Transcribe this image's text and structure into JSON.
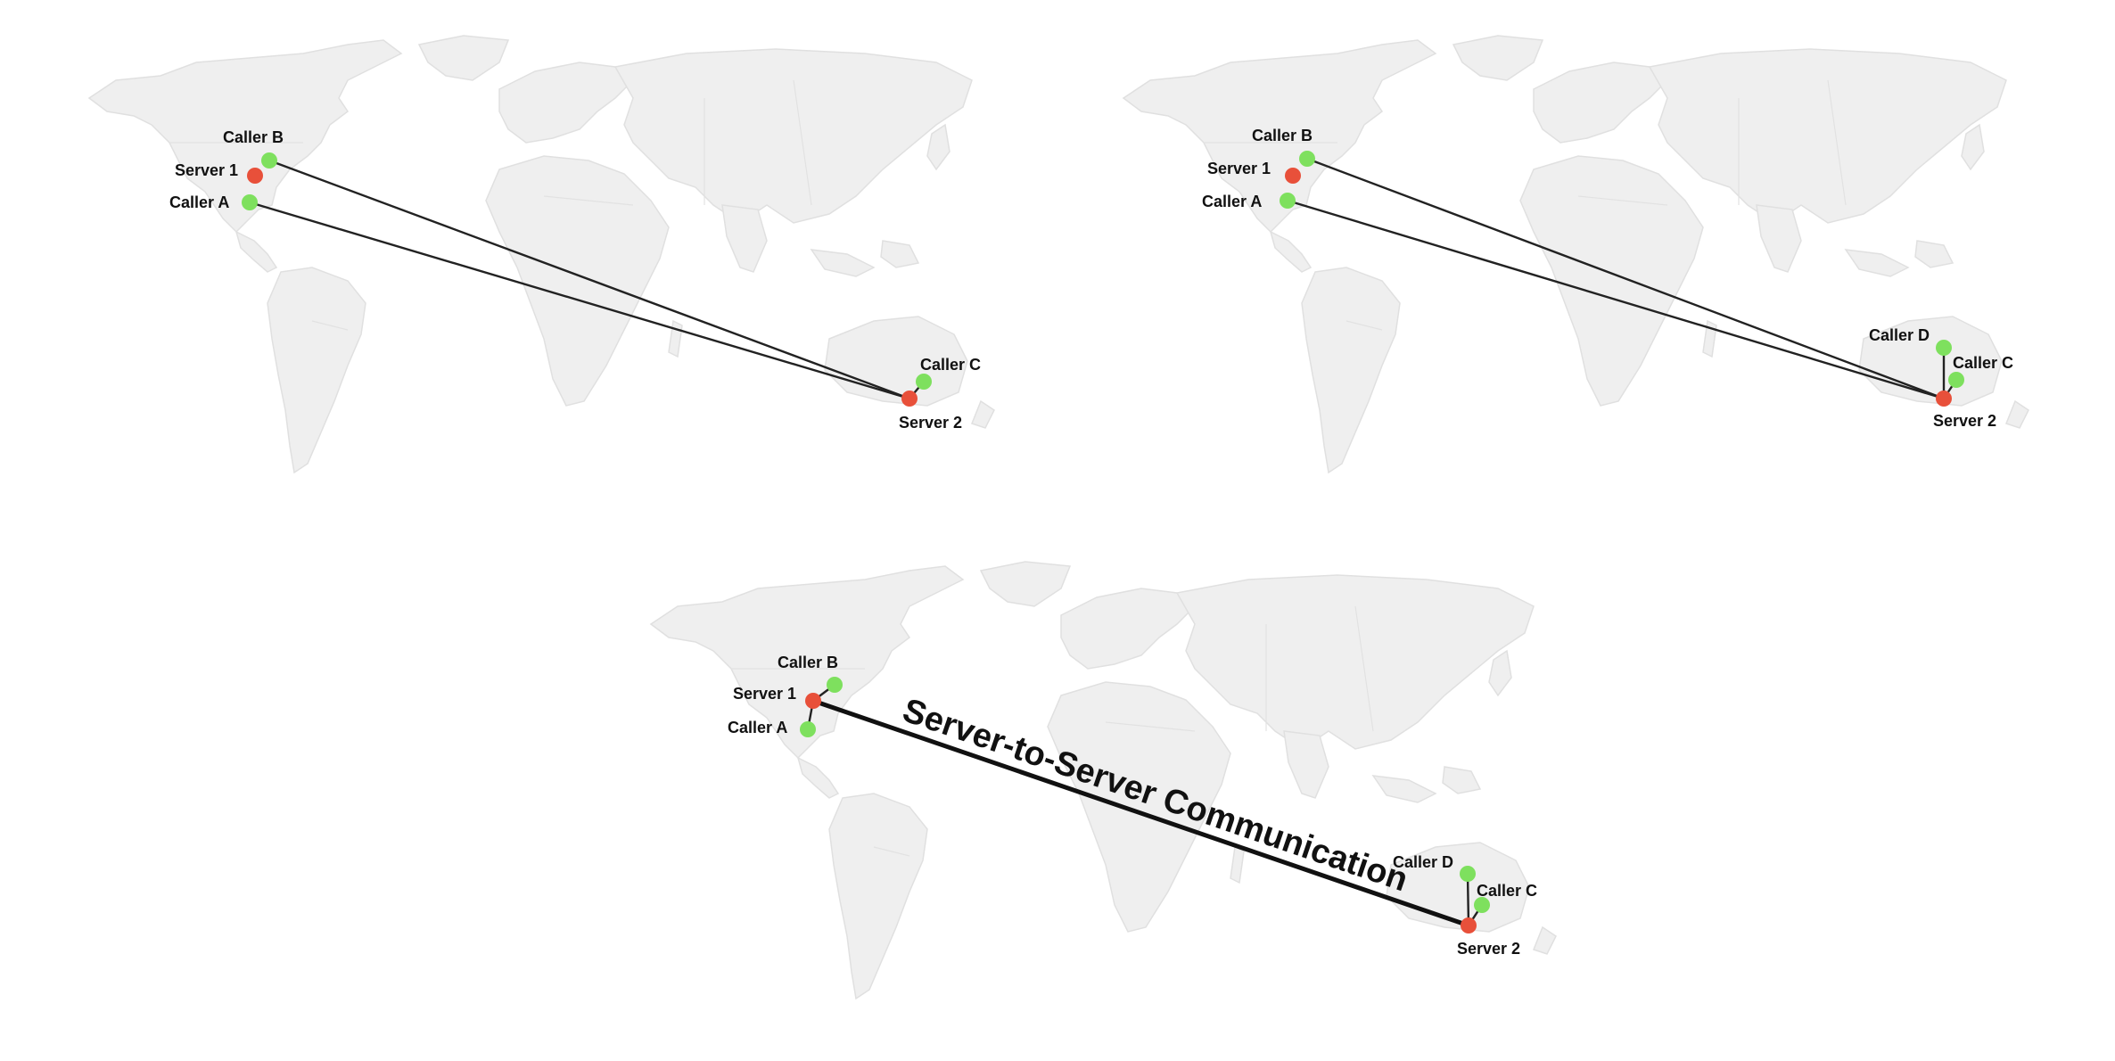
{
  "colors": {
    "server": "#e8503a",
    "caller": "#7ee05e",
    "land": "#efefef",
    "line": "#222222"
  },
  "panels": [
    {
      "id": "top-left",
      "nodes": [
        {
          "id": "caller-b",
          "label": "Caller B",
          "kind": "caller"
        },
        {
          "id": "server-1",
          "label": "Server 1",
          "kind": "server"
        },
        {
          "id": "caller-a",
          "label": "Caller A",
          "kind": "caller"
        },
        {
          "id": "caller-c",
          "label": "Caller C",
          "kind": "caller"
        },
        {
          "id": "server-2",
          "label": "Server 2",
          "kind": "server"
        }
      ]
    },
    {
      "id": "top-right",
      "nodes": [
        {
          "id": "caller-b",
          "label": "Caller B",
          "kind": "caller"
        },
        {
          "id": "server-1",
          "label": "Server 1",
          "kind": "server"
        },
        {
          "id": "caller-a",
          "label": "Caller A",
          "kind": "caller"
        },
        {
          "id": "caller-d",
          "label": "Caller D",
          "kind": "caller"
        },
        {
          "id": "caller-c",
          "label": "Caller C",
          "kind": "caller"
        },
        {
          "id": "server-2",
          "label": "Server 2",
          "kind": "server"
        }
      ]
    },
    {
      "id": "bottom",
      "nodes": [
        {
          "id": "caller-b",
          "label": "Caller B",
          "kind": "caller"
        },
        {
          "id": "server-1",
          "label": "Server 1",
          "kind": "server"
        },
        {
          "id": "caller-a",
          "label": "Caller A",
          "kind": "caller"
        },
        {
          "id": "caller-d",
          "label": "Caller D",
          "kind": "caller"
        },
        {
          "id": "caller-c",
          "label": "Caller C",
          "kind": "caller"
        },
        {
          "id": "server-2",
          "label": "Server 2",
          "kind": "server"
        }
      ],
      "trunk_label": "Server-to-Server Communication"
    }
  ]
}
